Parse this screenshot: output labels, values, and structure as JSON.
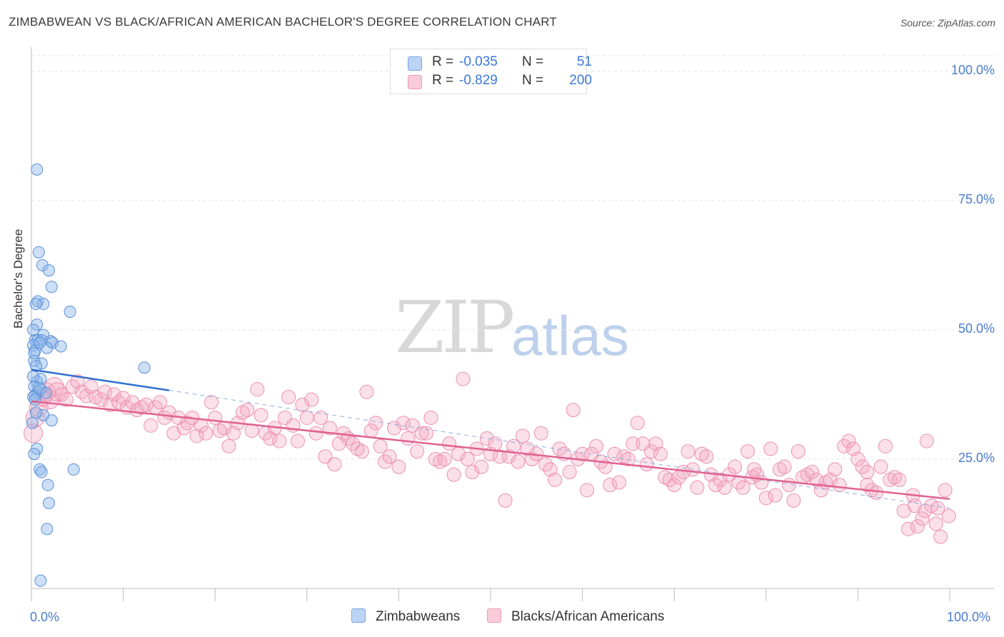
{
  "header": {
    "title": "ZIMBABWEAN VS BLACK/AFRICAN AMERICAN BACHELOR'S DEGREE CORRELATION CHART",
    "source": "Source: ZipAtlas.com"
  },
  "watermark": {
    "zip": "ZIP",
    "atlas": "atlas"
  },
  "legend": {
    "rows": [
      {
        "r_label": "R =",
        "r_value": "-0.035",
        "n_label": "N =",
        "n_value": "51",
        "color": "#8fb8ec"
      },
      {
        "r_label": "R =",
        "r_value": "-0.829",
        "n_label": "N =",
        "n_value": "200",
        "color": "#f4a6c0"
      }
    ]
  },
  "bottom_legend": [
    {
      "label": "Zimbabweans",
      "color": "#8fb8ec"
    },
    {
      "label": "Blacks/African Americans",
      "color": "#f4a6c0"
    }
  ],
  "chart_data": {
    "type": "scatter",
    "title": "ZIMBABWEAN VS BLACK/AFRICAN AMERICAN BACHELOR'S DEGREE CORRELATION CHART",
    "xlabel": "",
    "ylabel": "Bachelor's Degree",
    "xlim": [
      0,
      100
    ],
    "ylim": [
      0,
      103
    ],
    "x_tick_labels": [
      "0.0%",
      "100.0%"
    ],
    "y_ticks": [
      25,
      50,
      75,
      100
    ],
    "y_tick_labels": [
      "25.0%",
      "50.0%",
      "75.0%",
      "100.0%"
    ],
    "grid": true,
    "legend_position": "top-center",
    "series": [
      {
        "name": "Zimbabweans",
        "color": "#8fb8ec",
        "edge": "#3c78d8",
        "trend": {
          "x": [
            0,
            15
          ],
          "y": [
            42.3,
            38.3
          ],
          "dashed_to": [
            100,
            15.5
          ]
        },
        "points": [
          [
            0.6,
            81
          ],
          [
            0.8,
            65
          ],
          [
            1.2,
            62.5
          ],
          [
            1.9,
            61.5
          ],
          [
            2.2,
            58.3
          ],
          [
            0.7,
            55.5
          ],
          [
            1.3,
            55
          ],
          [
            0.5,
            55
          ],
          [
            4.2,
            53.5
          ],
          [
            0.6,
            51
          ],
          [
            1.3,
            49
          ],
          [
            0.4,
            48
          ],
          [
            0.7,
            48
          ],
          [
            1.1,
            48
          ],
          [
            2.1,
            47.8
          ],
          [
            2.3,
            47.5
          ],
          [
            0.2,
            47
          ],
          [
            3.2,
            46.8
          ],
          [
            1.7,
            46.5
          ],
          [
            0.4,
            46
          ],
          [
            0.3,
            44
          ],
          [
            1.1,
            43.5
          ],
          [
            0.5,
            43
          ],
          [
            12.3,
            42.7
          ],
          [
            0.6,
            40
          ],
          [
            1.0,
            40.5
          ],
          [
            0.3,
            39
          ],
          [
            0.7,
            38
          ],
          [
            1.0,
            38.5
          ],
          [
            0.4,
            37.3
          ],
          [
            0.2,
            37
          ],
          [
            1.3,
            33.5
          ],
          [
            2.2,
            32.5
          ],
          [
            0.1,
            32
          ],
          [
            0.6,
            27
          ],
          [
            0.3,
            26
          ],
          [
            0.9,
            23
          ],
          [
            1.1,
            22.5
          ],
          [
            4.6,
            23
          ],
          [
            1.8,
            20
          ],
          [
            1.9,
            16.5
          ],
          [
            1.7,
            11.5
          ],
          [
            1.0,
            1.5
          ],
          [
            0.2,
            41
          ],
          [
            0.4,
            36.5
          ],
          [
            0.5,
            34
          ],
          [
            0.8,
            38.8
          ],
          [
            0.2,
            50
          ],
          [
            0.9,
            47.5
          ],
          [
            1.6,
            37.8
          ],
          [
            0.3,
            45.5
          ]
        ]
      },
      {
        "name": "Blacks/African Americans",
        "color": "#f4a6c0",
        "edge": "#e26694",
        "trend": {
          "x": [
            0,
            100
          ],
          "y": [
            36.2,
            17.3
          ]
        },
        "points": [
          [
            0.2,
            30
          ],
          [
            0.4,
            33
          ],
          [
            0.8,
            35
          ],
          [
            1.2,
            37
          ],
          [
            1.6,
            38
          ],
          [
            2.0,
            36.5
          ],
          [
            2.5,
            39
          ],
          [
            2.8,
            38
          ],
          [
            3.3,
            37.5
          ],
          [
            3.8,
            36.5
          ],
          [
            4.5,
            39
          ],
          [
            5,
            40
          ],
          [
            5.5,
            38
          ],
          [
            6,
            37.2
          ],
          [
            6.5,
            39
          ],
          [
            7,
            37
          ],
          [
            7.6,
            36.5
          ],
          [
            8,
            38
          ],
          [
            8.6,
            35.5
          ],
          [
            9,
            37.5
          ],
          [
            9.5,
            36
          ],
          [
            10,
            36.8
          ],
          [
            10.4,
            35
          ],
          [
            11,
            36
          ],
          [
            11.5,
            34.5
          ],
          [
            12,
            35
          ],
          [
            12.5,
            35.5
          ],
          [
            13,
            31.5
          ],
          [
            13.5,
            35
          ],
          [
            14,
            36
          ],
          [
            14.5,
            33
          ],
          [
            15,
            34
          ],
          [
            15.5,
            30
          ],
          [
            16,
            33
          ],
          [
            16.6,
            31
          ],
          [
            17,
            32
          ],
          [
            17.5,
            33
          ],
          [
            18,
            29.5
          ],
          [
            18.5,
            31.5
          ],
          [
            19,
            30
          ],
          [
            19.6,
            36
          ],
          [
            20,
            33
          ],
          [
            20.5,
            30.5
          ],
          [
            21,
            31
          ],
          [
            21.5,
            27.5
          ],
          [
            22,
            30
          ],
          [
            22.5,
            32
          ],
          [
            23,
            34
          ],
          [
            23.5,
            34.5
          ],
          [
            24,
            30.5
          ],
          [
            24.6,
            38.5
          ],
          [
            25,
            33.5
          ],
          [
            25.5,
            30
          ],
          [
            26,
            29
          ],
          [
            26.5,
            31
          ],
          [
            27,
            28.5
          ],
          [
            27.6,
            33
          ],
          [
            28,
            37
          ],
          [
            28.5,
            31.5
          ],
          [
            29,
            28.5
          ],
          [
            29.5,
            35.5
          ],
          [
            30,
            33
          ],
          [
            30.5,
            36.5
          ],
          [
            31,
            30
          ],
          [
            31.5,
            33
          ],
          [
            32,
            25.5
          ],
          [
            32.5,
            31
          ],
          [
            33,
            24
          ],
          [
            33.5,
            28
          ],
          [
            34,
            30
          ],
          [
            34.5,
            29
          ],
          [
            35,
            28
          ],
          [
            35.5,
            27
          ],
          [
            36,
            26.5
          ],
          [
            36.5,
            38
          ],
          [
            37,
            30.5
          ],
          [
            37.5,
            32
          ],
          [
            38,
            27.5
          ],
          [
            38.5,
            24.5
          ],
          [
            39,
            25.5
          ],
          [
            39.5,
            31
          ],
          [
            40,
            23.5
          ],
          [
            40.5,
            32
          ],
          [
            41,
            29
          ],
          [
            41.5,
            31.5
          ],
          [
            42,
            26.5
          ],
          [
            42.5,
            30
          ],
          [
            43,
            30
          ],
          [
            43.5,
            33
          ],
          [
            44,
            25
          ],
          [
            44.5,
            24.5
          ],
          [
            45,
            25
          ],
          [
            45.5,
            28
          ],
          [
            46,
            22
          ],
          [
            46.5,
            26
          ],
          [
            47,
            40.5
          ],
          [
            47.5,
            25
          ],
          [
            48,
            22.5
          ],
          [
            48.5,
            27
          ],
          [
            49,
            23.5
          ],
          [
            49.6,
            29
          ],
          [
            50,
            26
          ],
          [
            50.5,
            28
          ],
          [
            51,
            25.5
          ],
          [
            51.6,
            17
          ],
          [
            52,
            25.5
          ],
          [
            52.5,
            27.5
          ],
          [
            53,
            24.5
          ],
          [
            53.5,
            29.5
          ],
          [
            54,
            27
          ],
          [
            54.5,
            25
          ],
          [
            55,
            26
          ],
          [
            55.5,
            30
          ],
          [
            56,
            24
          ],
          [
            56.5,
            23
          ],
          [
            57,
            21
          ],
          [
            57.5,
            27
          ],
          [
            58,
            26
          ],
          [
            58.6,
            22.5
          ],
          [
            59,
            34.5
          ],
          [
            59.5,
            25
          ],
          [
            60,
            26
          ],
          [
            60.5,
            19
          ],
          [
            61,
            26
          ],
          [
            61.5,
            27.5
          ],
          [
            62,
            24.5
          ],
          [
            62.5,
            23.5
          ],
          [
            63,
            20
          ],
          [
            63.5,
            26
          ],
          [
            64,
            20.5
          ],
          [
            64.5,
            25.5
          ],
          [
            65,
            25
          ],
          [
            65.5,
            28
          ],
          [
            66,
            32
          ],
          [
            66.6,
            28
          ],
          [
            67,
            24
          ],
          [
            67.5,
            26.5
          ],
          [
            68,
            28
          ],
          [
            68.5,
            26
          ],
          [
            69,
            21.5
          ],
          [
            69.5,
            21
          ],
          [
            70,
            20
          ],
          [
            70.5,
            21.5
          ],
          [
            71,
            22.5
          ],
          [
            71.5,
            26.5
          ],
          [
            72,
            23
          ],
          [
            72.5,
            19.5
          ],
          [
            73,
            26
          ],
          [
            73.5,
            25.5
          ],
          [
            74,
            22
          ],
          [
            74.5,
            20
          ],
          [
            75,
            21
          ],
          [
            75.5,
            19.5
          ],
          [
            76,
            22
          ],
          [
            76.6,
            23.5
          ],
          [
            77,
            20.5
          ],
          [
            77.5,
            19.5
          ],
          [
            78,
            26.5
          ],
          [
            78.5,
            21.5
          ],
          [
            79,
            22
          ],
          [
            79.5,
            20.5
          ],
          [
            80,
            17.5
          ],
          [
            80.5,
            27
          ],
          [
            81,
            18
          ],
          [
            81.5,
            23
          ],
          [
            82,
            23.5
          ],
          [
            82.5,
            20
          ],
          [
            83,
            17
          ],
          [
            83.5,
            26.5
          ],
          [
            84,
            21.5
          ],
          [
            84.5,
            22
          ],
          [
            85,
            22.5
          ],
          [
            85.5,
            21
          ],
          [
            86,
            19
          ],
          [
            86.5,
            20.5
          ],
          [
            87,
            21
          ],
          [
            87.5,
            23
          ],
          [
            88,
            20
          ],
          [
            88.5,
            27.5
          ],
          [
            89,
            28.5
          ],
          [
            89.5,
            27
          ],
          [
            90,
            25
          ],
          [
            90.5,
            23.5
          ],
          [
            91,
            20
          ],
          [
            91.5,
            19
          ],
          [
            92,
            18.5
          ],
          [
            92.5,
            23.5
          ],
          [
            93,
            27.5
          ],
          [
            93.5,
            21
          ],
          [
            94,
            21.5
          ],
          [
            94.5,
            21
          ],
          [
            95,
            15
          ],
          [
            95.5,
            11.5
          ],
          [
            96,
            18
          ],
          [
            96.5,
            12
          ],
          [
            97,
            13.5
          ],
          [
            97.5,
            28.5
          ],
          [
            98,
            16
          ],
          [
            98.5,
            12.5
          ],
          [
            99,
            10
          ],
          [
            99.5,
            19
          ],
          [
            99.9,
            14
          ],
          [
            97.3,
            15
          ],
          [
            96.2,
            16
          ],
          [
            98.7,
            15.5
          ],
          [
            91,
            22.5
          ],
          [
            78.7,
            23
          ]
        ]
      }
    ]
  }
}
